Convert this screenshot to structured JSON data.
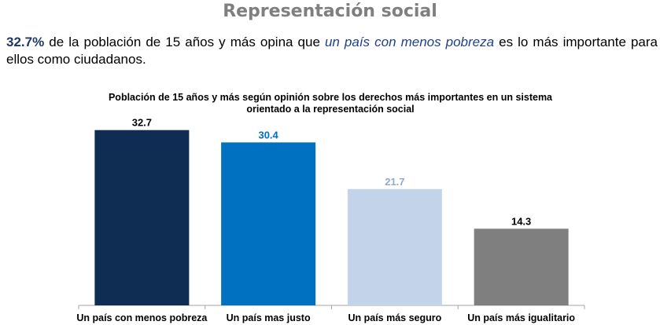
{
  "page": {
    "section_title": "Representación social",
    "summary": {
      "percent": "32.7%",
      "text_before": " de la población de 15 años y más opina que ",
      "phrase": "un país con menos pobreza",
      "text_after": " es lo más importante para ellos como ciudadanos."
    }
  },
  "colors": {
    "title": "#7f7f7f",
    "percent_highlight": "#1f3864",
    "phrase_highlight": "#1f3f8a",
    "axis": "#a6a6a6"
  },
  "chart_data": {
    "type": "bar",
    "title": "Población de 15 años y más según opinión sobre los derechos más importantes en un sistema orientado a la representación social",
    "categories": [
      "Un país con menos pobreza",
      "Un país mas justo",
      "Un país más seguro",
      "Un país más igualitario"
    ],
    "values": [
      32.7,
      30.4,
      21.7,
      14.3
    ],
    "value_labels": [
      "32.7",
      "30.4",
      "21.7",
      "14.3"
    ],
    "bar_colors": [
      "#0f2d52",
      "#0070c0",
      "#c3d4ea",
      "#7f7f7f"
    ],
    "label_colors": [
      "#000000",
      "#0070c0",
      "#8fa9d0",
      "#000000"
    ],
    "xlabel": "",
    "ylabel": "",
    "ylim": [
      0,
      35
    ],
    "grid": false,
    "legend": "none"
  }
}
